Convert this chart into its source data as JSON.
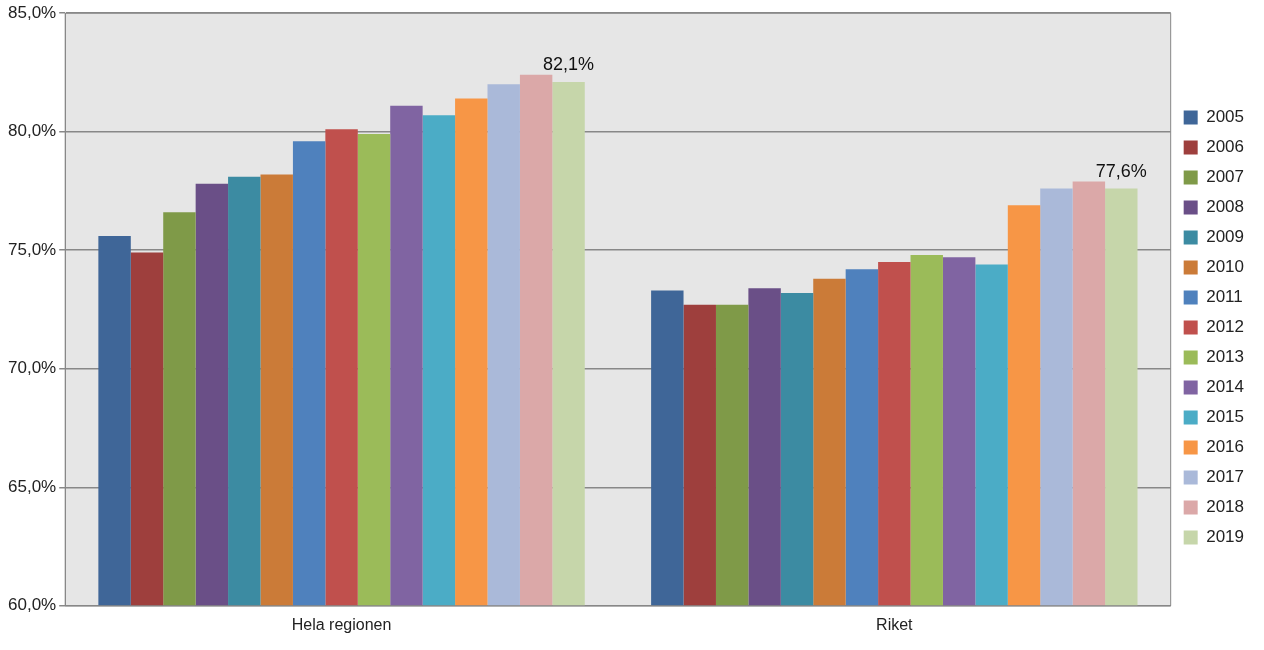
{
  "chart_data": {
    "type": "bar",
    "categories": [
      "Hela regionen",
      "Riket"
    ],
    "series": [
      {
        "name": "2005",
        "color": "#3f6698",
        "values": [
          75.6,
          73.3
        ]
      },
      {
        "name": "2006",
        "color": "#9e3f3d",
        "values": [
          74.9,
          72.7
        ]
      },
      {
        "name": "2007",
        "color": "#7f9a48",
        "values": [
          76.6,
          72.7
        ]
      },
      {
        "name": "2008",
        "color": "#6a4f87",
        "values": [
          77.8,
          73.4
        ]
      },
      {
        "name": "2009",
        "color": "#3c8ba2",
        "values": [
          78.1,
          73.2
        ]
      },
      {
        "name": "2010",
        "color": "#cb7b38",
        "values": [
          78.2,
          73.8
        ]
      },
      {
        "name": "2011",
        "color": "#4f81bd",
        "values": [
          79.6,
          74.2
        ]
      },
      {
        "name": "2012",
        "color": "#c0504d",
        "values": [
          80.1,
          74.5
        ]
      },
      {
        "name": "2013",
        "color": "#9bbb59",
        "values": [
          79.9,
          74.8
        ]
      },
      {
        "name": "2014",
        "color": "#8064a2",
        "values": [
          81.1,
          74.7
        ]
      },
      {
        "name": "2015",
        "color": "#4bacc6",
        "values": [
          80.7,
          74.4
        ]
      },
      {
        "name": "2016",
        "color": "#f79646",
        "values": [
          81.4,
          76.9
        ]
      },
      {
        "name": "2017",
        "color": "#aab9d9",
        "values": [
          82.0,
          77.6
        ]
      },
      {
        "name": "2018",
        "color": "#dba8a8",
        "values": [
          82.4,
          77.9
        ]
      },
      {
        "name": "2019",
        "color": "#c6d6aa",
        "values": [
          82.1,
          77.6
        ],
        "value_labels": [
          "82,1%",
          "77,6%"
        ]
      }
    ],
    "ylim": [
      60,
      85
    ],
    "yticks": [
      {
        "value": 60,
        "label": "60,0%"
      },
      {
        "value": 65,
        "label": "65,0%"
      },
      {
        "value": 70,
        "label": "70,0%"
      },
      {
        "value": 75,
        "label": "75,0%"
      },
      {
        "value": 80,
        "label": "80,0%"
      },
      {
        "value": 85,
        "label": "85,0%"
      }
    ],
    "grid": "y",
    "legend": "right"
  }
}
